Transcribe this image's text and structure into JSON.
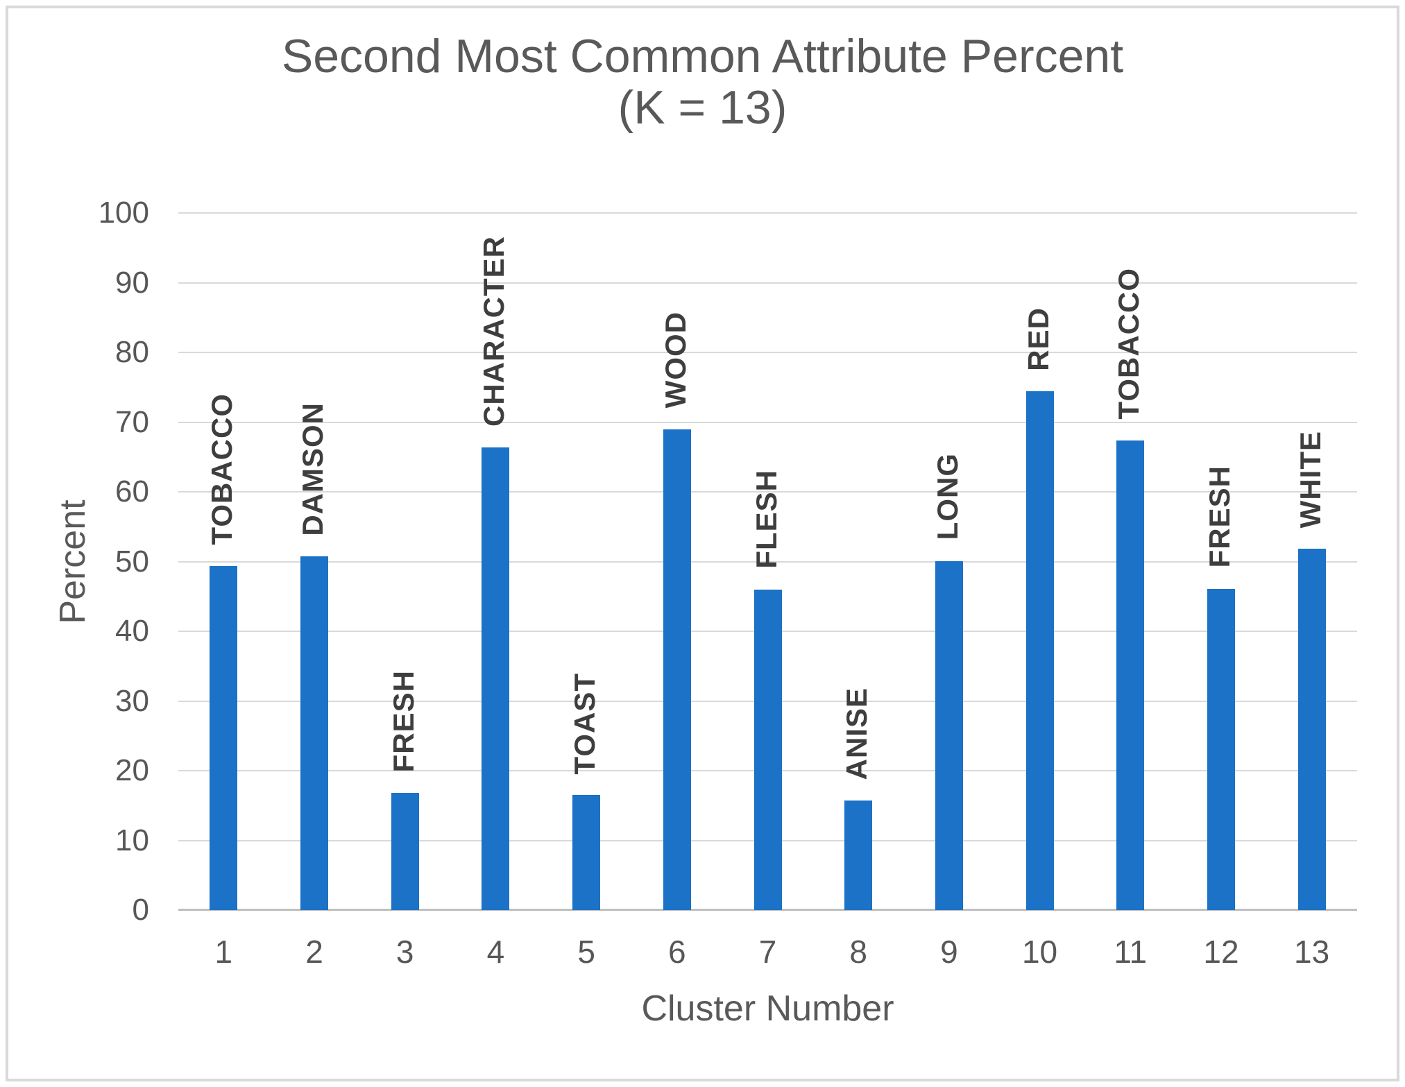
{
  "title": {
    "line1": "Second Most Common Attribute Percent",
    "line2": "(K = 13)"
  },
  "chart_data": {
    "type": "bar",
    "title": "Second Most Common Attribute Percent (K = 13)",
    "xlabel": "Cluster Number",
    "ylabel": "Percent",
    "categories": [
      "1",
      "2",
      "3",
      "4",
      "5",
      "6",
      "7",
      "8",
      "9",
      "10",
      "11",
      "12",
      "13"
    ],
    "values": [
      49.4,
      50.7,
      16.8,
      66.4,
      16.5,
      69.0,
      46.0,
      15.7,
      50.1,
      74.4,
      67.4,
      46.1,
      51.8
    ],
    "bar_labels": [
      "TOBACCO",
      "DAMSON",
      "FRESH",
      "CHARACTER",
      "TOAST",
      "WOOD",
      "FLESH",
      "ANISE",
      "LONG",
      "RED",
      "TOBACCO",
      "FRESH",
      "WHITE"
    ],
    "ylim": [
      0,
      100
    ],
    "yticks": [
      0,
      10,
      20,
      30,
      40,
      50,
      60,
      70,
      80,
      90,
      100
    ],
    "grid": "horizontal",
    "legend": "none",
    "bar_color": "#1B72C6"
  },
  "colors": {
    "bar": "#1B72C6",
    "gridline": "#D9D9D9",
    "axis_line": "#BFBFBF",
    "tick_text": "#575757",
    "title_text": "#595959",
    "data_label_text": "#3E3E3E",
    "frame_border": "#D9D9D9"
  }
}
